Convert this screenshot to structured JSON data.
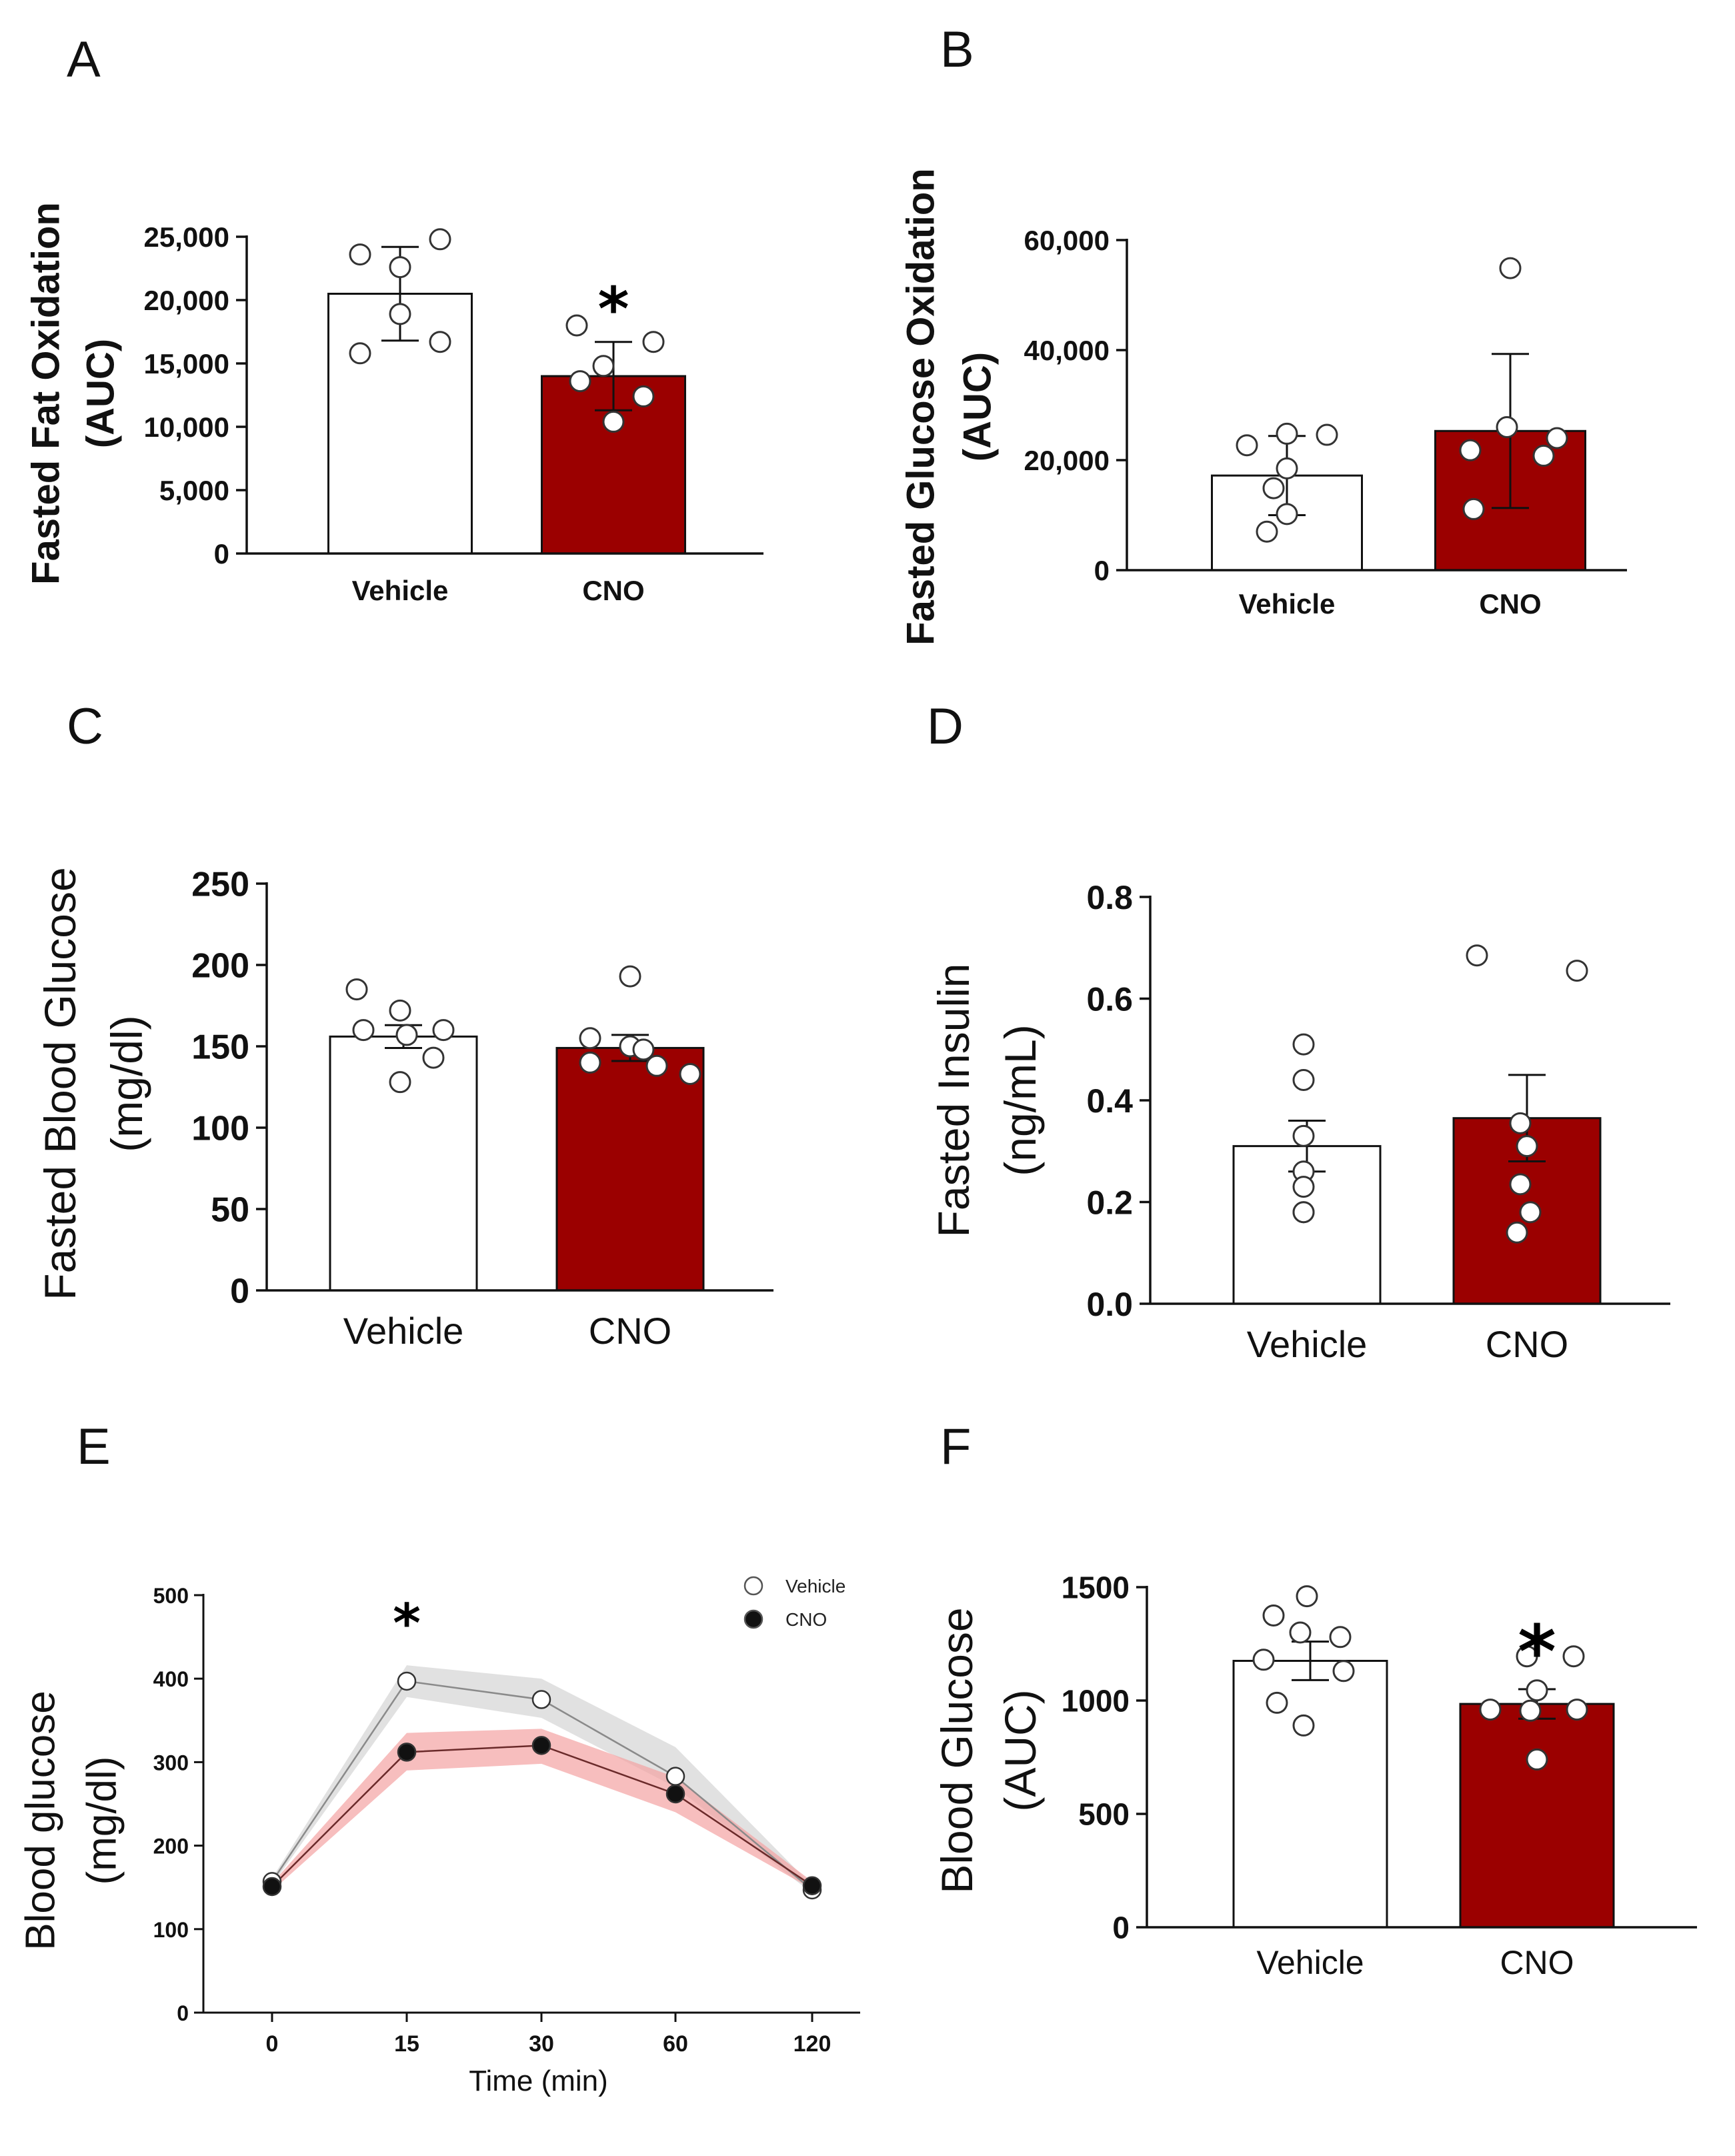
{
  "colors": {
    "cno_fill": "#9b0000",
    "vehicle_fill": "#ffffff",
    "axis": "#111111",
    "vehicle_band": "#dcdcdc",
    "cno_band": "#f3a3a3",
    "vehicle_line": "#8a8a8a",
    "cno_line": "#6a2a2a"
  },
  "chart_data": [
    {
      "panel": "A",
      "type": "bar",
      "ylabel_line1": "Fasted Fat Oxidation",
      "ylabel_line2": "(AUC)",
      "categories": [
        "Vehicle",
        "CNO"
      ],
      "values": [
        20500,
        14000
      ],
      "errors": [
        3700,
        2700
      ],
      "ylim": [
        0,
        25000
      ],
      "yticks": [
        0,
        5000,
        10000,
        15000,
        20000,
        25000
      ],
      "ytick_labels": [
        "0",
        "5,000",
        "10,000",
        "15,000",
        "20,000",
        "25,000"
      ],
      "points": [
        [
          23600,
          24800,
          22600,
          18900,
          15800,
          16700
        ],
        [
          18000,
          16700,
          14800,
          13600,
          12400,
          10400
        ]
      ],
      "significance": [
        "",
        "*"
      ]
    },
    {
      "panel": "B",
      "type": "bar",
      "ylabel_line1": "Fasted Glucose Oxidation",
      "ylabel_line2": "(AUC)",
      "categories": [
        "Vehicle",
        "CNO"
      ],
      "values": [
        17200,
        25300
      ],
      "errors": [
        7200,
        14000
      ],
      "ylim": [
        0,
        60000
      ],
      "yticks": [
        0,
        20000,
        40000,
        60000
      ],
      "ytick_labels": [
        "0",
        "20,000",
        "40,000",
        "60,000"
      ],
      "points": [
        [
          22700,
          24800,
          24600,
          18500,
          14900,
          10200,
          7000
        ],
        [
          54900,
          26000,
          24000,
          21800,
          20800,
          11100
        ]
      ],
      "significance": [
        "",
        ""
      ]
    },
    {
      "panel": "C",
      "type": "bar",
      "ylabel_line1": "Fasted Blood Glucose",
      "ylabel_line2": "(mg/dl)",
      "categories": [
        "Vehicle",
        "CNO"
      ],
      "values": [
        156,
        149
      ],
      "errors": [
        7,
        8
      ],
      "ylim": [
        0,
        250
      ],
      "yticks": [
        0,
        50,
        100,
        150,
        200,
        250
      ],
      "ytick_labels": [
        "0",
        "50",
        "100",
        "150",
        "200",
        "250"
      ],
      "points": [
        [
          185,
          172,
          160,
          160,
          157,
          143,
          128
        ],
        [
          193,
          155,
          150,
          148,
          140,
          138,
          133
        ]
      ],
      "significance": [
        "",
        ""
      ]
    },
    {
      "panel": "D",
      "type": "bar",
      "ylabel_line1": "Fasted Insulin",
      "ylabel_line2": "(ng/mL)",
      "categories": [
        "Vehicle",
        "CNO"
      ],
      "values": [
        0.31,
        0.365
      ],
      "errors": [
        0.05,
        0.085
      ],
      "ylim": [
        0,
        0.8
      ],
      "yticks": [
        0,
        0.2,
        0.4,
        0.6,
        0.8
      ],
      "ytick_labels": [
        "0.0",
        "0.2",
        "0.4",
        "0.6",
        "0.8"
      ],
      "points": [
        [
          0.51,
          0.44,
          0.33,
          0.26,
          0.23,
          0.18,
          0.18
        ],
        [
          0.685,
          0.655,
          0.355,
          0.31,
          0.235,
          0.18,
          0.14
        ]
      ],
      "significance": [
        "",
        ""
      ]
    },
    {
      "panel": "E",
      "type": "line",
      "xlabel": "Time (min)",
      "ylabel_line1": "Blood glucose",
      "ylabel_line2": "(mg/dl)",
      "x": [
        "0",
        "15",
        "30",
        "60",
        "120"
      ],
      "ylim": [
        0,
        500
      ],
      "yticks": [
        0,
        100,
        200,
        300,
        400,
        500
      ],
      "ytick_labels": [
        "0",
        "100",
        "200",
        "300",
        "400",
        "500"
      ],
      "series": [
        {
          "name": "Vehicle",
          "values": [
            157,
            397,
            375,
            283,
            147
          ],
          "band_lower": [
            153,
            378,
            353,
            270,
            143
          ],
          "band_upper": [
            161,
            416,
            400,
            318,
            152
          ]
        },
        {
          "name": "CNO",
          "values": [
            151,
            312,
            320,
            262,
            152
          ],
          "band_lower": [
            146,
            290,
            298,
            240,
            148
          ],
          "band_upper": [
            155,
            335,
            340,
            282,
            157
          ]
        }
      ],
      "significance": [
        "",
        "*",
        "",
        "",
        ""
      ]
    },
    {
      "panel": "F",
      "type": "bar",
      "ylabel_line1": "Blood Glucose",
      "ylabel_line2": "(AUC)",
      "categories": [
        "Vehicle",
        "CNO"
      ],
      "values": [
        1175,
        985
      ],
      "errors": [
        85,
        65
      ],
      "ylim": [
        0,
        1500
      ],
      "yticks": [
        0,
        500,
        1000,
        1500
      ],
      "ytick_labels": [
        "0",
        "500",
        "1000",
        "1500"
      ],
      "points": [
        [
          1460,
          1375,
          1300,
          1280,
          1180,
          1130,
          990,
          890
        ],
        [
          1195,
          1195,
          1045,
          960,
          960,
          955,
          740
        ]
      ],
      "significance": [
        "",
        "*"
      ]
    }
  ]
}
